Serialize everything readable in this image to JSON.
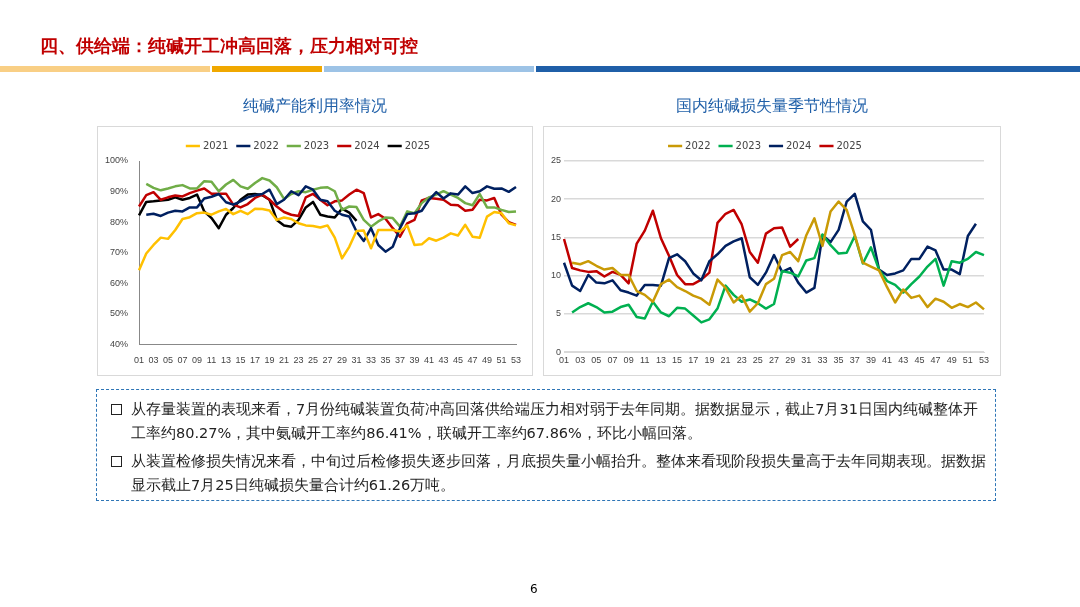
{
  "chart_data": [
    {
      "type": "line",
      "title": "纯碱产能利用率情况",
      "categories": [
        "01",
        null,
        "03",
        null,
        "05",
        null,
        "07",
        null,
        "09",
        null,
        "11",
        null,
        "13",
        null,
        "15",
        null,
        "17",
        null,
        "19",
        null,
        "21",
        null,
        "23",
        null,
        "25",
        null,
        "27",
        null,
        "29",
        null,
        "31",
        null,
        "33",
        null,
        "35",
        null,
        "37",
        null,
        "39",
        null,
        "41",
        null,
        "43",
        null,
        "45",
        null,
        "47",
        null,
        "49",
        null,
        "51",
        null,
        "53"
      ],
      "series": [
        {
          "name": "2021",
          "color": "#ffc000",
          "values": [
            64.2,
            69.7,
            72.5,
            74.9,
            74.5,
            77.4,
            81,
            81.6,
            82.9,
            83.1,
            82.4,
            83.5,
            84.3,
            82.6,
            83.7,
            82.6,
            84.4,
            84.3,
            83.8,
            80.7,
            81.5,
            81,
            79.6,
            78.9,
            78.7,
            78.2,
            78.9,
            74.9,
            68.1,
            71.9,
            77.1,
            77.2,
            71.4,
            77.4,
            77.4,
            77.4,
            76.9,
            78.9,
            72.5,
            72.7,
            74.7,
            73.9,
            74.9,
            76.3,
            75.6,
            79.1,
            75.2,
            74.9,
            81.8,
            83.3,
            82.9,
            79.6,
            78.9
          ]
        },
        {
          "name": "2022",
          "color": "#002060",
          "values": [
            null,
            82.4,
            82.7,
            82,
            83.1,
            83.7,
            83.5,
            84.8,
            84.8,
            87.7,
            88.3,
            89.2,
            86.5,
            85.7,
            86.8,
            88.1,
            88.8,
            89.2,
            90.6,
            85.9,
            87.3,
            90.1,
            88.8,
            91.7,
            90.6,
            87.3,
            86.8,
            83.7,
            82.4,
            81.8,
            76.9,
            73.8,
            78,
            72.5,
            70.3,
            71.9,
            78,
            82.6,
            82.9,
            83.7,
            87.3,
            89.8,
            87.7,
            89.4,
            89,
            91.7,
            89.5,
            90.1,
            91.7,
            90.9,
            91,
            89.9,
            91.5
          ]
        },
        {
          "name": "2023",
          "color": "#70ad47",
          "values": [
            null,
            92.5,
            91.2,
            90.4,
            91,
            91.7,
            92.1,
            91,
            91,
            93.4,
            93.2,
            90.1,
            92.3,
            93.8,
            91.7,
            90.9,
            92.8,
            94.4,
            93.6,
            91.4,
            87.6,
            89.2,
            90.1,
            89.8,
            90.6,
            91.2,
            91.4,
            90.1,
            84,
            85.1,
            84.9,
            80.7,
            78.5,
            80.2,
            81.5,
            81.3,
            78.5,
            83.5,
            82.9,
            86.2,
            88.1,
            89,
            90.1,
            89,
            87.9,
            86.2,
            85.5,
            89.2,
            84.8,
            84.8,
            84,
            83.3,
            83.5
          ]
        },
        {
          "name": "2024",
          "color": "#c00000",
          "values": [
            85.1,
            88.8,
            89.8,
            87.3,
            88.1,
            88.7,
            88.4,
            89.5,
            90.3,
            91,
            89.3,
            89.3,
            89.3,
            85.7,
            84.8,
            85.9,
            87.9,
            89,
            87.3,
            85.1,
            83.3,
            82.4,
            82,
            88.1,
            89.2,
            87.3,
            85.5,
            86.8,
            87.1,
            89,
            90.6,
            89.5,
            81.5,
            82.6,
            81.1,
            78,
            75.2,
            79.6,
            80.7,
            87.1,
            87.9,
            87.6,
            87.3,
            85.7,
            85.5,
            83.7,
            84,
            87.3,
            87.1,
            87.9,
            82.4,
            80,
            79.1
          ]
        },
        {
          "name": "2025",
          "color": "#000000",
          "values": [
            82.2,
            86.6,
            86.8,
            87.1,
            87.3,
            88.1,
            87.3,
            87.9,
            89,
            83.5,
            81.3,
            78,
            82.4,
            84.6,
            87.3,
            89,
            89.2,
            88.8,
            87.3,
            80.7,
            78.9,
            78.5,
            80.7,
            84.8,
            86.6,
            82.4,
            81.8,
            81.5,
            84.4,
            83.1,
            80.4,
            null,
            null,
            null,
            null,
            null,
            null,
            null,
            null,
            null,
            null,
            null,
            null,
            null,
            null,
            null,
            null,
            null,
            null,
            null,
            null,
            null,
            null
          ]
        }
      ],
      "ylim": [
        40,
        100
      ],
      "yticks": [
        {
          "value": 40,
          "label": "40%"
        },
        {
          "value": 50,
          "label": "50%"
        },
        {
          "value": 60,
          "label": "60%"
        },
        {
          "value": 70,
          "label": "70%"
        },
        {
          "value": 80,
          "label": "80%"
        },
        {
          "value": 90,
          "label": "90%"
        },
        {
          "value": 100,
          "label": "100%"
        }
      ],
      "grid": false,
      "legend": "top",
      "marker": "none",
      "line_style": "solid"
    },
    {
      "type": "line",
      "title": "国内纯碱损失量季节性情况",
      "categories": [
        "01",
        null,
        "03",
        null,
        "05",
        null,
        "07",
        null,
        "09",
        null,
        "11",
        null,
        "13",
        null,
        "15",
        null,
        "17",
        null,
        "19",
        null,
        "21",
        null,
        "23",
        null,
        "25",
        null,
        "27",
        null,
        "29",
        null,
        "31",
        null,
        "33",
        null,
        "35",
        null,
        "37",
        null,
        "39",
        null,
        "41",
        null,
        "43",
        null,
        "45",
        null,
        "47",
        null,
        "49",
        null,
        "51",
        null,
        "53"
      ],
      "series": [
        {
          "name": "2022",
          "color": "#c99a06",
          "values": [
            null,
            11.7,
            11.5,
            11.9,
            11.3,
            10.8,
            11,
            10.1,
            10.1,
            8,
            7.5,
            6.6,
            8.9,
            9.5,
            8.5,
            8,
            7.4,
            7,
            6.2,
            9.5,
            8.4,
            6.5,
            7.4,
            5.3,
            6.4,
            8.9,
            9.6,
            12.7,
            13.1,
            11.9,
            15.3,
            17.5,
            13.9,
            18.4,
            19.7,
            18.6,
            15.3,
            11.7,
            11.2,
            10.7,
            8.5,
            6.5,
            8.2,
            7.1,
            7.4,
            5.9,
            7,
            6.6,
            5.8,
            6.3,
            5.9,
            6.5,
            5.6
          ]
        },
        {
          "name": "2023",
          "color": "#00b050",
          "values": [
            null,
            5.2,
            5.9,
            6.4,
            5.9,
            5.2,
            5.3,
            5.9,
            6.2,
            4.6,
            4.4,
            6.6,
            5.2,
            4.7,
            5.8,
            5.7,
            4.8,
            3.9,
            4.3,
            5.7,
            8.7,
            7.5,
            6.6,
            6.9,
            6.4,
            5.7,
            6.3,
            10.6,
            10.4,
            9.9,
            12,
            12.3,
            15.4,
            14,
            12.9,
            13,
            15.2,
            11.6,
            13.7,
            10.8,
            9.3,
            8.8,
            7.8,
            8.9,
            9.9,
            11.2,
            12.2,
            8.7,
            11.9,
            11.7,
            12.2,
            13.1,
            12.7
          ]
        },
        {
          "name": "2024",
          "color": "#002060",
          "values": [
            11.7,
            8.7,
            8,
            10.1,
            9.1,
            9,
            9.4,
            8.1,
            7.8,
            7.4,
            8.8,
            8.8,
            8.7,
            12.3,
            12.8,
            11.9,
            10.3,
            9.4,
            11.9,
            12.8,
            13.9,
            14.5,
            14.9,
            9.8,
            8.8,
            10.4,
            12.7,
            10.5,
            11,
            9.1,
            7.8,
            8.4,
            15.3,
            14.4,
            16,
            19.7,
            20.7,
            17.1,
            16,
            10.8,
            10.1,
            10.3,
            10.7,
            12.2,
            12.2,
            13.8,
            13.3,
            10.8,
            10.8,
            10.2,
            15.2,
            16.8,
            null
          ]
        },
        {
          "name": "2025",
          "color": "#c00000",
          "values": [
            14.8,
            11,
            10.7,
            10.5,
            10.6,
            9.9,
            10.5,
            10.1,
            9,
            14.2,
            15.9,
            18.5,
            14.9,
            12.6,
            10.1,
            8.9,
            8.9,
            9.5,
            10.4,
            16.9,
            18.1,
            18.6,
            16.7,
            13.1,
            11.7,
            15.5,
            16.2,
            16.3,
            13.8,
            14.8,
            null,
            null,
            null,
            null,
            null,
            null,
            null,
            null,
            null,
            null,
            null,
            null,
            null,
            null,
            null,
            null,
            null,
            null,
            null,
            null,
            null,
            null,
            null
          ]
        }
      ],
      "ylim": [
        0,
        25
      ],
      "yticks": [
        0,
        5,
        10,
        15,
        20,
        25
      ],
      "grid": "y",
      "legend": "top",
      "marker": "none",
      "line_style": "solid"
    },
    {
      "type": "other",
      "title": "四、供给端：纯碱开工冲高回落，压力相对可控",
      "annotations": [
        "从存量装置的表现来看，7月份纯碱装置负荷冲高回落供给端压力相对弱于去年同期。据数据显示，截止7月31日国内纯碱整体开工率约80.27%，其中氨碱开工率约86.41%，联碱开工率约67.86%，环比小幅回落。",
        "从装置检修损失情况来看，中旬过后检修损失逐步回落，月底损失量小幅抬升。整体来看现阶段损失量高于去年同期表现。据数据显示截止7月25日纯碱损失量合计约61.26万吨。",
        "6"
      ]
    }
  ]
}
